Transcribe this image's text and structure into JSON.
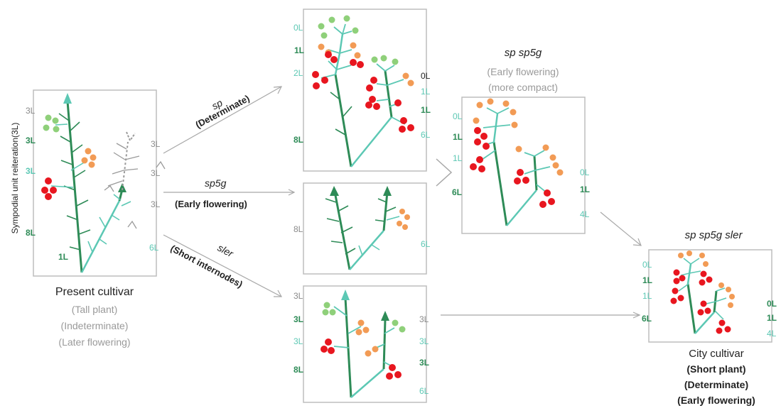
{
  "colors": {
    "dark_green": "#2e8b57",
    "teal": "#5cc8b4",
    "red": "#e8161f",
    "orange": "#f29b55",
    "light_green": "#8fd07a",
    "frame": "#bdbdbd",
    "arrow": "#a8a8a8"
  },
  "y_axis_label": "Sympodial unit reiteration(3L)",
  "left_panel": {
    "leaf_labels_left": [
      "3L",
      "3L",
      "3L",
      "8L",
      "1L"
    ],
    "leaf_labels_right": [
      "3L",
      "3L",
      "3L",
      "6L"
    ],
    "title": "Present cultivar",
    "traits": [
      "(Tall plant)",
      "(Indeterminate)",
      "(Later flowering)"
    ]
  },
  "arrows": {
    "sp": {
      "gene": "sp",
      "effect": "(Determinate)"
    },
    "sp5g": {
      "gene": "sp5g",
      "effect": "(Early flowering)"
    },
    "sler": {
      "gene": "sler",
      "effect": "(Short internodes)"
    }
  },
  "panel_sp": {
    "left_labels": [
      "0L",
      "1L",
      "2L",
      "8L"
    ],
    "right_labels": [
      "0L",
      "1L",
      "1L",
      "6L"
    ]
  },
  "panel_sp5g": {
    "left_labels": [
      "8L"
    ],
    "right_labels": [
      "6L"
    ]
  },
  "panel_sler": {
    "left_labels": [
      "3L",
      "3L",
      "3L",
      "8L"
    ],
    "right_labels": [
      "3L",
      "3L",
      "3L",
      "6L"
    ]
  },
  "panel_double": {
    "title": "sp sp5g",
    "traits": [
      "(Early flowering)",
      "(more compact)"
    ],
    "left_labels": [
      "0L",
      "1L",
      "1L",
      "6L"
    ],
    "right_labels": [
      "0L",
      "1L",
      "4L"
    ]
  },
  "panel_triple": {
    "title": "sp sp5g sler",
    "left_labels": [
      "0L",
      "1L",
      "1L",
      "6L"
    ],
    "right_labels": [
      "0L",
      "1L",
      "4L"
    ],
    "caption": "City cultivar",
    "traits": [
      "(Short plant)",
      "(Determinate)",
      "(Early flowering)"
    ]
  }
}
